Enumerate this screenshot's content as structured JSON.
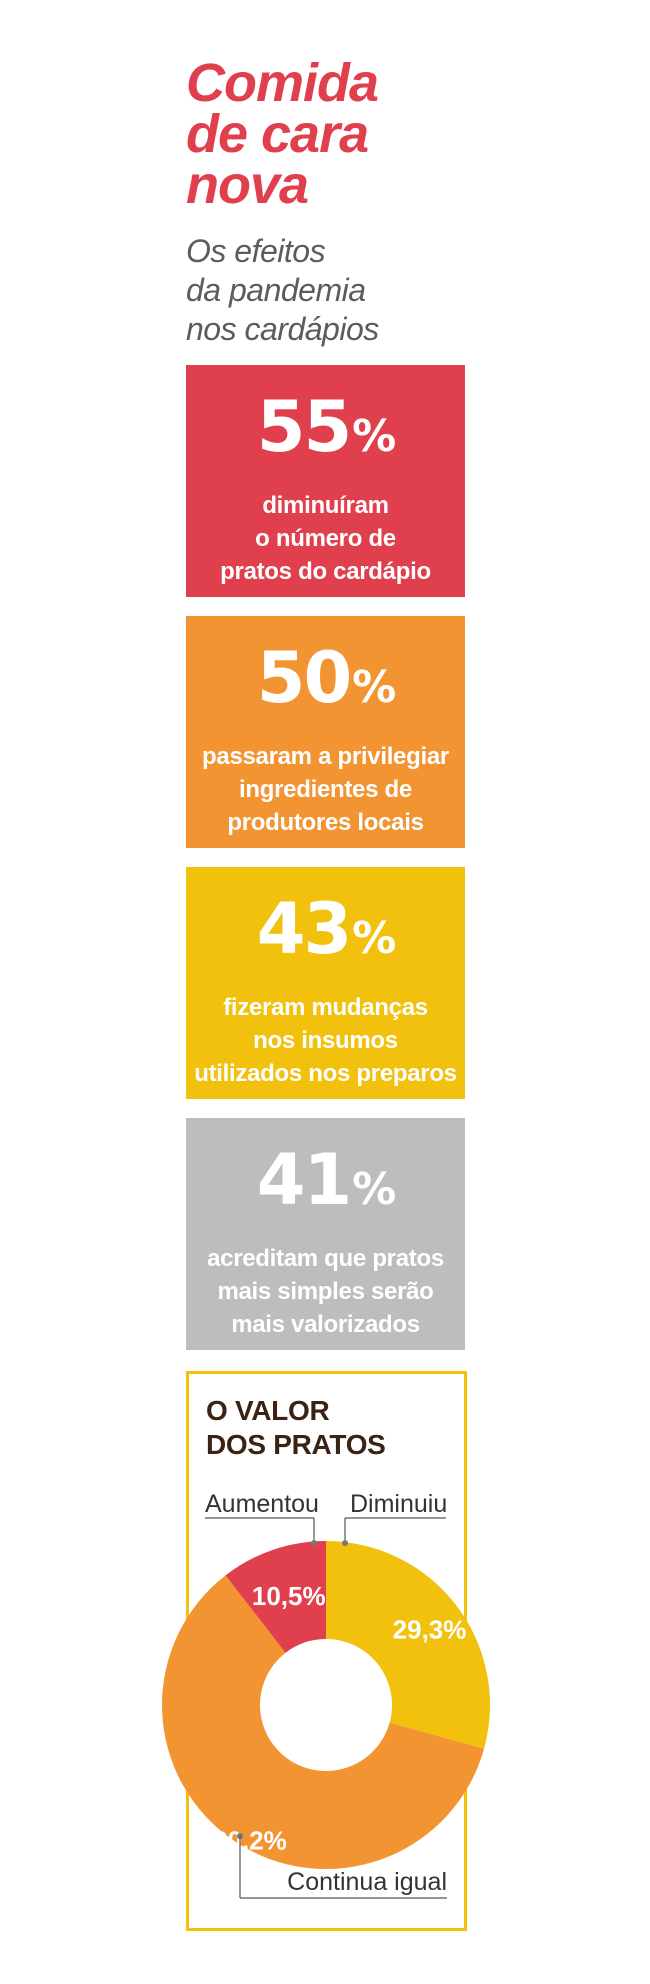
{
  "header": {
    "title_lines": [
      "Comida",
      "de cara",
      "nova"
    ],
    "subtitle_lines": [
      "Os efeitos",
      "da pandemia",
      "nos cardápios"
    ]
  },
  "stats": [
    {
      "value": "55",
      "unit": "%",
      "lines": [
        "diminuíram",
        "o número de",
        "pratos do cardápio"
      ],
      "color": "#e0404e"
    },
    {
      "value": "50",
      "unit": "%",
      "lines": [
        "passaram a privilegiar",
        "ingredientes de",
        "produtores locais"
      ],
      "color": "#f39433"
    },
    {
      "value": "43",
      "unit": "%",
      "lines": [
        "fizeram mudanças",
        "nos insumos",
        "utilizados nos preparos"
      ],
      "color": "#f2c10e"
    },
    {
      "value": "41",
      "unit": "%",
      "lines": [
        "acreditam que pratos",
        "mais simples serão",
        "mais valorizados"
      ],
      "color": "#bdbdbd"
    }
  ],
  "chart_data": {
    "type": "pie",
    "title": "O VALOR DOS PRATOS",
    "title_lines": [
      "O VALOR",
      "DOS PRATOS"
    ],
    "slices": [
      {
        "label": "Diminuiu",
        "value": 29.3,
        "display": "29,3%",
        "color": "#f2c10e"
      },
      {
        "label": "Continua igual",
        "value": 60.2,
        "display": "60,2%",
        "color": "#f39433"
      },
      {
        "label": "Aumentou",
        "value": 10.5,
        "display": "10,5%",
        "color": "#e0404e"
      }
    ],
    "donut": true
  }
}
